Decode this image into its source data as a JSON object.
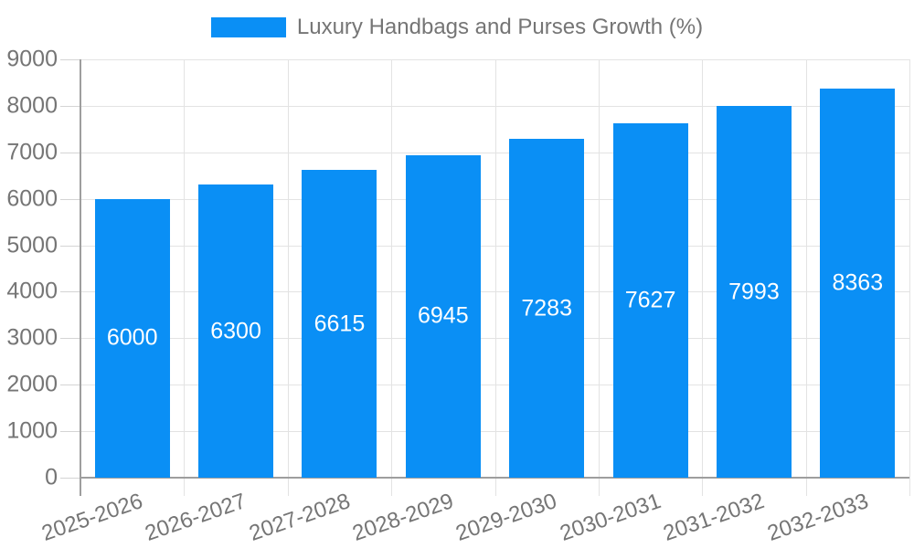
{
  "chart_data": {
    "type": "bar",
    "title": "",
    "legend": "Luxury Handbags and Purses Growth (%)",
    "categories": [
      "2025-2026",
      "2026-2027",
      "2027-2028",
      "2028-2029",
      "2029-2030",
      "2030-2031",
      "2031-2032",
      "2032-2033"
    ],
    "values": [
      6000,
      6300,
      6615,
      6945,
      7283,
      7627,
      7993,
      8363
    ],
    "bar_labels": [
      "6000",
      "6300",
      "6615",
      "6945",
      "7283",
      "7627",
      "7993",
      "8363"
    ],
    "xlabel": "",
    "ylabel": "",
    "ylim": [
      0,
      9000
    ],
    "ytick_step": 1000,
    "y_tick_labels": [
      "0",
      "1000",
      "2000",
      "3000",
      "4000",
      "5000",
      "6000",
      "7000",
      "8000",
      "9000"
    ],
    "grid": true,
    "legend_position": "top-center",
    "colors": {
      "bar": "#0a8ff5",
      "axis": "#9e9e9e",
      "grid": "#e3e3e3",
      "tick": "#d4d4d4",
      "tick_text": "#757575",
      "bar_label_text": "#ffffff",
      "background": "#ffffff"
    }
  }
}
